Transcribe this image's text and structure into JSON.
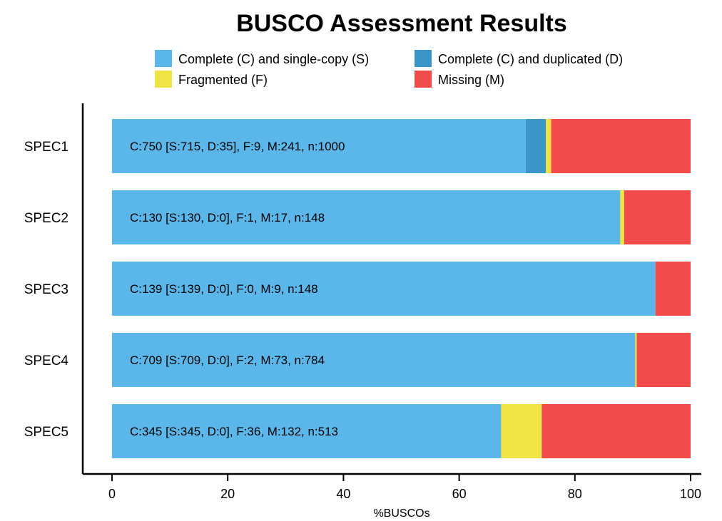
{
  "chart_data": {
    "type": "bar",
    "orientation": "horizontal",
    "stacked": true,
    "title": "BUSCO Assessment Results",
    "xlabel": "%BUSCOs",
    "ylabel": "",
    "xlim": [
      0,
      100
    ],
    "x_ticks": [
      "0",
      "20",
      "40",
      "60",
      "80",
      "100"
    ],
    "categories": [
      "SPEC1",
      "SPEC2",
      "SPEC3",
      "SPEC4",
      "SPEC5"
    ],
    "series": [
      {
        "name": "Complete (C) and single-copy (S)",
        "color": "#5bb6ea",
        "values": [
          71.5,
          87.84,
          93.92,
          90.43,
          67.25
        ]
      },
      {
        "name": "Complete (C) and duplicated (D)",
        "color": "#3a96c9",
        "values": [
          3.5,
          0,
          0,
          0,
          0
        ]
      },
      {
        "name": "Fragmented (F)",
        "color": "#f0e442",
        "values": [
          0.9,
          0.68,
          0,
          0.26,
          7.02
        ]
      },
      {
        "name": "Missing (M)",
        "color": "#f14b4b",
        "values": [
          24.1,
          11.49,
          6.08,
          9.31,
          25.73
        ]
      }
    ],
    "bar_labels": [
      "C:750 [S:715, D:35], F:9, M:241, n:1000",
      "C:130 [S:130, D:0], F:1, M:17, n:148",
      "C:139 [S:139, D:0], F:0, M:9, n:148",
      "C:709 [S:709, D:0], F:2, M:73, n:784",
      "C:345 [S:345, D:0], F:36, M:132, n:513"
    ],
    "legend": {
      "position": "top",
      "entries": [
        "Complete (C) and single-copy (S)",
        "Complete (C) and duplicated (D)",
        "Fragmented (F)",
        "Missing (M)"
      ]
    },
    "grid": false
  }
}
